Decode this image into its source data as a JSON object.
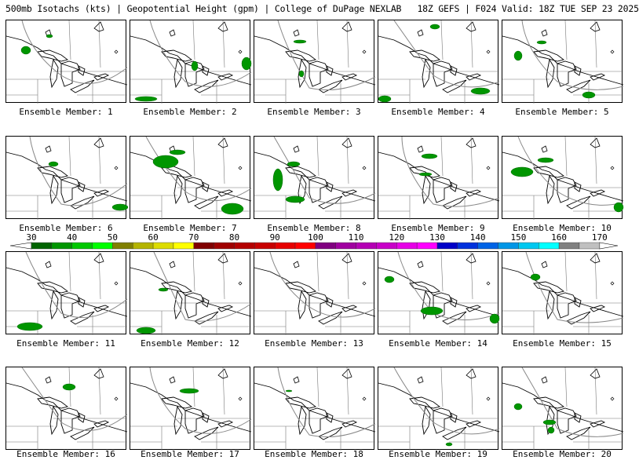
{
  "title": "500mb Isotachs (kts) | Geopotential Height (gpm) | College of DuPage NEXLAB   18Z GEFS | F024 Valid: 18Z TUE SEP 23 2025",
  "panels": [
    "Ensemble Member: 1",
    "Ensemble Member: 2",
    "Ensemble Member: 3",
    "Ensemble Member: 4",
    "Ensemble Member: 5",
    "Ensemble Member: 6",
    "Ensemble Member: 7",
    "Ensemble Member: 8",
    "Ensemble Member: 9",
    "Ensemble Member: 10",
    "Ensemble Member: 11",
    "Ensemble Member: 12",
    "Ensemble Member: 13",
    "Ensemble Member: 14",
    "Ensemble Member: 15",
    "Ensemble Member: 16",
    "Ensemble Member: 17",
    "Ensemble Member: 18",
    "Ensemble Member: 19",
    "Ensemble Member: 20"
  ],
  "colorbar": {
    "labels": [
      "30",
      "40",
      "50",
      "60",
      "70",
      "80",
      "90",
      "100",
      "110",
      "120",
      "130",
      "140",
      "150",
      "160",
      "170"
    ],
    "colors": [
      "#006400",
      "#009600",
      "#00c800",
      "#00ff00",
      "#808000",
      "#b4b400",
      "#dcdc00",
      "#ffff00",
      "#800000",
      "#a00000",
      "#b40000",
      "#c80000",
      "#e60000",
      "#ff0000",
      "#800080",
      "#a000a0",
      "#b400b4",
      "#c800c8",
      "#e600e6",
      "#ff00ff",
      "#0000c8",
      "#0032dc",
      "#0064e6",
      "#0096e6",
      "#00c8f0",
      "#00ffff",
      "#808080",
      "#c0c0c0"
    ]
  }
}
